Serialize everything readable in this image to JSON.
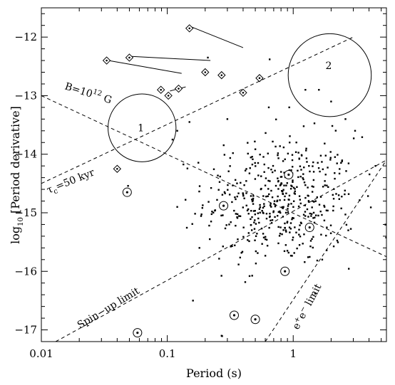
{
  "chart_data": {
    "type": "scatter",
    "xlabel": "Period (s)",
    "ylabel": "log10 [Period derivative]",
    "ylabel_main": "log",
    "ylabel_sub": "10",
    "ylabel_rest": " [Period derivative]",
    "x_scale": "log",
    "xlim": [
      0.01,
      5.5
    ],
    "ylim": [
      -17.2,
      -11.5
    ],
    "x_ticks": [
      {
        "value": 0.01,
        "label": "0.01"
      },
      {
        "value": 0.1,
        "label": "0.1"
      },
      {
        "value": 1,
        "label": "1"
      }
    ],
    "y_ticks": [
      {
        "value": -12,
        "label": "−12"
      },
      {
        "value": -13,
        "label": "−13"
      },
      {
        "value": -14,
        "label": "−14"
      },
      {
        "value": -15,
        "label": "−15"
      },
      {
        "value": -16,
        "label": "−16"
      },
      {
        "value": -17,
        "label": "−17"
      }
    ],
    "grid": false,
    "reference_lines": [
      {
        "label": "B=10¹² G",
        "from": [
          0.01,
          -13.0
        ],
        "to": [
          5.5,
          -15.75
        ]
      },
      {
        "label": "τc=50 kyr",
        "from": [
          0.01,
          -14.5
        ],
        "to": [
          3.0,
          -12.0
        ]
      },
      {
        "label": "Spin-up limit",
        "from": [
          0.013,
          -17.2
        ],
        "to": [
          5.5,
          -14.1
        ]
      },
      {
        "label": "e+e- limit",
        "from": [
          0.6,
          -17.2
        ],
        "to": [
          5.5,
          -14.1
        ]
      }
    ],
    "annotations": [
      {
        "text": "B=10",
        "sup": "12",
        "tail": " G"
      },
      {
        "text": "τ",
        "sub": "c",
        "tail": "=50 kyr"
      },
      {
        "text": "Spin−up limit"
      },
      {
        "text": "e",
        "sup": "+",
        "mid": "e",
        "sup2": "−",
        "tail": " limit"
      }
    ],
    "regions": [
      {
        "label": "1",
        "center": [
          0.063,
          -13.55
        ],
        "radius_dex": 0.27
      },
      {
        "label": "2",
        "center": [
          1.95,
          -12.65
        ],
        "radius_dex": 0.33
      }
    ],
    "diamond_sources": [
      {
        "p": 0.033,
        "pdot": -12.4
      },
      {
        "p": 0.05,
        "pdot": -12.35
      },
      {
        "p": 0.15,
        "pdot": -11.85
      },
      {
        "p": 0.089,
        "pdot": -12.9
      },
      {
        "p": 0.102,
        "pdot": -13.0
      },
      {
        "p": 0.123,
        "pdot": -12.88
      },
      {
        "p": 0.2,
        "pdot": -12.6
      },
      {
        "p": 0.27,
        "pdot": -12.65
      },
      {
        "p": 0.4,
        "pdot": -12.95
      },
      {
        "p": 0.54,
        "pdot": -12.7
      },
      {
        "p": 0.04,
        "pdot": -14.25
      }
    ],
    "motion_tracks": [
      {
        "from": [
          0.153,
          -11.82
        ],
        "to": [
          0.4,
          -12.18
        ]
      },
      {
        "from": [
          0.052,
          -12.33
        ],
        "to": [
          0.22,
          -12.4
        ]
      },
      {
        "from": [
          0.034,
          -12.4
        ],
        "to": [
          0.13,
          -12.62
        ]
      },
      {
        "from": [
          0.105,
          -12.92
        ],
        "to": [
          0.14,
          -12.85
        ]
      }
    ],
    "circled_sources": [
      {
        "p": 0.048,
        "pdot": -14.65
      },
      {
        "p": 0.28,
        "pdot": -14.88
      },
      {
        "p": 0.92,
        "pdot": -14.35
      },
      {
        "p": 0.86,
        "pdot": -16.0
      },
      {
        "p": 1.35,
        "pdot": -15.25
      },
      {
        "p": 0.34,
        "pdot": -16.75
      },
      {
        "p": 0.5,
        "pdot": -16.82
      },
      {
        "p": 0.058,
        "pdot": -17.05
      }
    ],
    "pulsar_population": {
      "center_logp": -0.1,
      "center_pdot": -14.8,
      "spread_logp": 0.3,
      "spread_pdot": 0.55,
      "count": 480
    },
    "extra_points": [
      {
        "p": 0.21,
        "pdot": -12.35
      },
      {
        "p": 0.65,
        "pdot": -12.38
      },
      {
        "p": 1.25,
        "pdot": -12.9
      },
      {
        "p": 0.93,
        "pdot": -13.2
      },
      {
        "p": 0.64,
        "pdot": -13.2
      },
      {
        "p": 0.3,
        "pdot": -13.4
      },
      {
        "p": 0.15,
        "pdot": -13.45
      },
      {
        "p": 0.11,
        "pdot": -13.75
      },
      {
        "p": 0.12,
        "pdot": -13.6
      },
      {
        "p": 2.6,
        "pdot": -13.4
      },
      {
        "p": 3.1,
        "pdot": -13.6
      },
      {
        "p": 4.5,
        "pdot": -14.2
      },
      {
        "p": 0.12,
        "pdot": -14.9
      },
      {
        "p": 0.16,
        "pdot": -16.5
      },
      {
        "p": 1.7,
        "pdot": -15.8
      },
      {
        "p": 0.27,
        "pdot": -17.1
      },
      {
        "p": 2.3,
        "pdot": -14.7
      },
      {
        "p": 0.18,
        "pdot": -15.6
      },
      {
        "p": 2.0,
        "pdot": -13.1
      },
      {
        "p": 1.6,
        "pdot": -12.9
      }
    ]
  }
}
